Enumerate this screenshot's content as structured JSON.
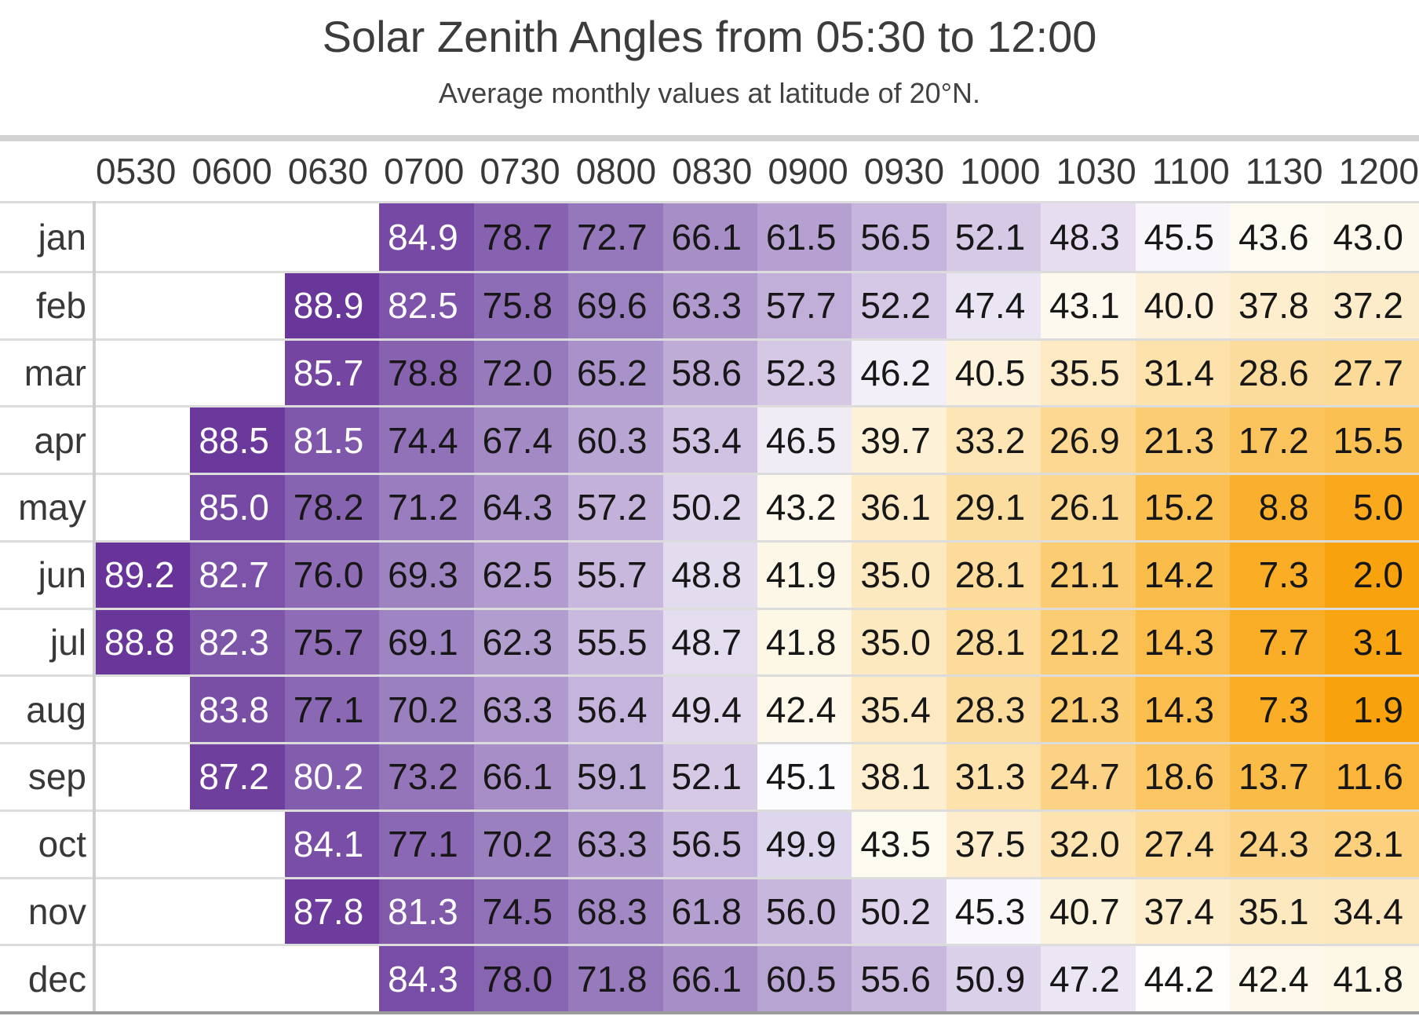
{
  "title": "Solar Zenith Angles from 05:30 to 12:00",
  "subtitle": "Average monthly values at latitude of 20°N.",
  "chart_data": {
    "type": "heatmap",
    "x_labels": [
      "0530",
      "0600",
      "0630",
      "0700",
      "0730",
      "0800",
      "0830",
      "0900",
      "0930",
      "1000",
      "1030",
      "1100",
      "1130",
      "1200"
    ],
    "y_labels": [
      "jan",
      "feb",
      "mar",
      "apr",
      "may",
      "jun",
      "jul",
      "aug",
      "sep",
      "oct",
      "nov",
      "dec"
    ],
    "values": [
      [
        null,
        null,
        null,
        84.9,
        78.7,
        72.7,
        66.1,
        61.5,
        56.5,
        52.1,
        48.3,
        45.5,
        43.6,
        43.0
      ],
      [
        null,
        null,
        88.9,
        82.5,
        75.8,
        69.6,
        63.3,
        57.7,
        52.2,
        47.4,
        43.1,
        40.0,
        37.8,
        37.2
      ],
      [
        null,
        null,
        85.7,
        78.8,
        72.0,
        65.2,
        58.6,
        52.3,
        46.2,
        40.5,
        35.5,
        31.4,
        28.6,
        27.7
      ],
      [
        null,
        88.5,
        81.5,
        74.4,
        67.4,
        60.3,
        53.4,
        46.5,
        39.7,
        33.2,
        26.9,
        21.3,
        17.2,
        15.5
      ],
      [
        null,
        85.0,
        78.2,
        71.2,
        64.3,
        57.2,
        50.2,
        43.2,
        36.1,
        29.1,
        26.1,
        15.2,
        8.8,
        5.0
      ],
      [
        89.2,
        82.7,
        76.0,
        69.3,
        62.5,
        55.7,
        48.8,
        41.9,
        35.0,
        28.1,
        21.1,
        14.2,
        7.3,
        2.0
      ],
      [
        88.8,
        82.3,
        75.7,
        69.1,
        62.3,
        55.5,
        48.7,
        41.8,
        35.0,
        28.1,
        21.2,
        14.3,
        7.7,
        3.1
      ],
      [
        null,
        83.8,
        77.1,
        70.2,
        63.3,
        56.4,
        49.4,
        42.4,
        35.4,
        28.3,
        21.3,
        14.3,
        7.3,
        1.9
      ],
      [
        null,
        87.2,
        80.2,
        73.2,
        66.1,
        59.1,
        52.1,
        45.1,
        38.1,
        31.3,
        24.7,
        18.6,
        13.7,
        11.6
      ],
      [
        null,
        null,
        84.1,
        77.1,
        70.2,
        63.3,
        56.5,
        49.9,
        43.5,
        37.5,
        32.0,
        27.4,
        24.3,
        23.1
      ],
      [
        null,
        null,
        87.8,
        81.3,
        74.5,
        68.3,
        61.8,
        56.0,
        50.2,
        45.3,
        40.7,
        37.4,
        35.1,
        34.4
      ],
      [
        null,
        null,
        null,
        84.3,
        78.0,
        71.8,
        66.1,
        60.5,
        55.6,
        50.9,
        47.2,
        44.2,
        42.4,
        41.8
      ]
    ],
    "value_decimals": 1,
    "colors": {
      "white_text_min_value": 79.5,
      "dark_text": "#171717",
      "light_text": "#ffffff",
      "empty_cell": "#ffffff",
      "scale_stops": [
        [
          1.9,
          "#f8a30d"
        ],
        [
          4,
          "#f9a716"
        ],
        [
          7,
          "#faac24"
        ],
        [
          10,
          "#fab232"
        ],
        [
          13,
          "#fbba43"
        ],
        [
          16,
          "#fbc155"
        ],
        [
          19,
          "#fbc765"
        ],
        [
          22,
          "#fcce77"
        ],
        [
          25,
          "#fcd488"
        ],
        [
          28,
          "#fcdb9a"
        ],
        [
          31,
          "#fde1a9"
        ],
        [
          34,
          "#fde7bb"
        ],
        [
          37,
          "#fdecc9"
        ],
        [
          40,
          "#fdf2d9"
        ],
        [
          42,
          "#fdf7e8"
        ],
        [
          43.5,
          "#fdfaf0"
        ],
        [
          44.3,
          "#ffffff"
        ],
        [
          45.0,
          "#fdfcfe"
        ],
        [
          45.5,
          "#f8f6fb"
        ],
        [
          46.5,
          "#f0ecf6"
        ],
        [
          48,
          "#e7e0f1"
        ],
        [
          50,
          "#ded5ec"
        ],
        [
          52,
          "#d5c9e6"
        ],
        [
          55,
          "#cabbdf"
        ],
        [
          58,
          "#c0aed8"
        ],
        [
          61,
          "#b6a2d2"
        ],
        [
          64,
          "#ad96cb"
        ],
        [
          67,
          "#a48bc5"
        ],
        [
          70,
          "#9c81c0"
        ],
        [
          73,
          "#9476ba"
        ],
        [
          76,
          "#8d6cb5"
        ],
        [
          79,
          "#8561af"
        ],
        [
          82,
          "#7e56aa"
        ],
        [
          85,
          "#764aa4"
        ],
        [
          87,
          "#70409f"
        ],
        [
          89.2,
          "#683499"
        ]
      ]
    },
    "legend": "none",
    "grid": "horizontal row separators only",
    "value_alignment": "right"
  }
}
